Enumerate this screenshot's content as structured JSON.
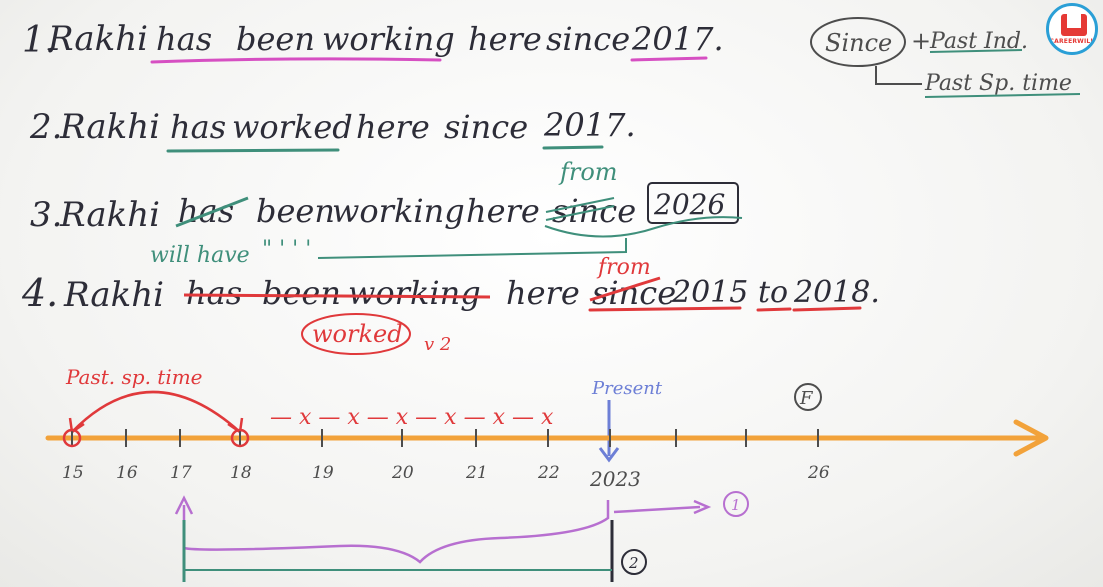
{
  "colors": {
    "ink": "#2d2d38",
    "pink": "#d64fc2",
    "teal": "#3f8f7b",
    "red": "#e0393b",
    "orange": "#f2a23a",
    "blue": "#6d7fd6",
    "purple": "#b76fd0",
    "gray": "#4d4d4d",
    "logo_blue": "#2a9fd6",
    "logo_red": "#e53935"
  },
  "logo": {
    "text": "CAREERWILL"
  },
  "sentences": [
    {
      "num": "1.",
      "subject": "Rakhi",
      "aux": "has",
      "been": "been",
      "verb": "working",
      "rest": "here",
      "prep": "since",
      "year": "2017."
    },
    {
      "num": "2.",
      "subject": "Rakhi",
      "aux": "has",
      "verb": "worked",
      "rest": "here",
      "prep": "since",
      "year": "2017."
    },
    {
      "num": "3.",
      "subject": "Rakhi",
      "aux": "has",
      "been": "been",
      "verb": "working",
      "rest": "here",
      "prep": "since",
      "year": "2026",
      "aux_fix": "will have",
      "ditto": "\" '  ' '",
      "prep_fix": "from"
    },
    {
      "num": "4.",
      "subject": "Rakhi",
      "aux": "has",
      "been": "been",
      "verb": "working",
      "rest": "here",
      "prep": "since",
      "year": "2015",
      "to": "to",
      "year2": "2018.",
      "verb_fix": "worked",
      "form": "v 2",
      "prep_fix": "from"
    }
  ],
  "rule": {
    "since": "Since",
    "plus": "+",
    "tense": "Past Ind.",
    "result": "Past Sp. time"
  },
  "timeline": {
    "span_label": "Past. sp. time",
    "present_label": "Present",
    "future_mark": "F",
    "ticks": [
      "15",
      "16",
      "17",
      "18",
      "19",
      "20",
      "21",
      "22",
      "2023",
      "26"
    ],
    "crosses": "— x — x — x — x — x — x",
    "case1": "1",
    "case2": "2"
  }
}
